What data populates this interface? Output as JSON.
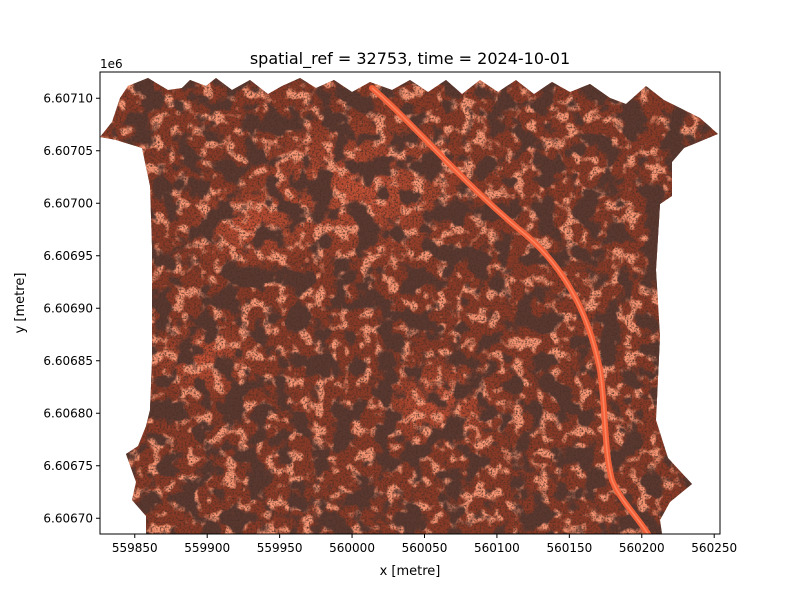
{
  "chart_data": {
    "type": "heatmap",
    "title": "spatial_ref = 32753, time = 2024-10-01",
    "xlabel": "x [metre]",
    "ylabel": "y [metre]",
    "y_offset_label": "1e6",
    "xlim": [
      559826,
      560254
    ],
    "ylim": [
      6606685,
      6607125
    ],
    "x_ticks": [
      559850,
      559900,
      559950,
      560000,
      560050,
      560100,
      560150,
      560200,
      560250
    ],
    "x_tick_labels": [
      "559850",
      "559900",
      "559950",
      "560000",
      "560050",
      "560100",
      "560150",
      "560200",
      "560250"
    ],
    "y_ticks": [
      6606700,
      6606750,
      6606800,
      6606850,
      6606900,
      6606950,
      6607000,
      6607050,
      6607100
    ],
    "y_tick_labels": [
      "6.60670",
      "6.60675",
      "6.60680",
      "6.60685",
      "6.60690",
      "6.60695",
      "6.60700",
      "6.60705",
      "6.60710"
    ],
    "grid": false,
    "legend": "none",
    "colors": {
      "raster_base": "#8a3a26",
      "raster_bright": "#f04a2a",
      "raster_dark": "#2a1410",
      "track": "#f2603a"
    }
  }
}
